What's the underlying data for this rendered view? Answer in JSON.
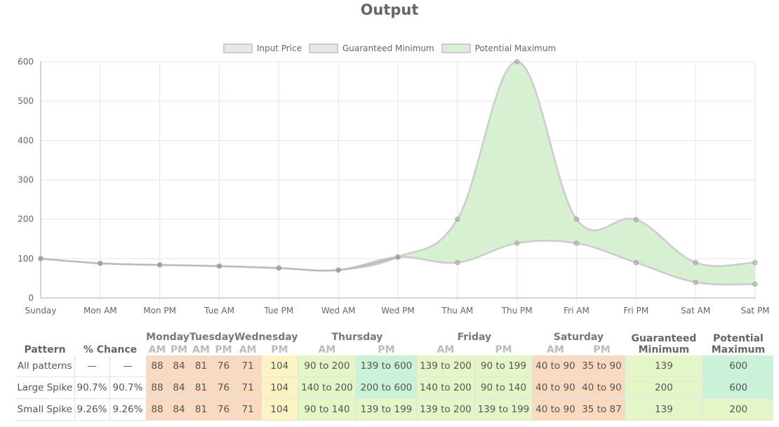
{
  "page_title": "Output",
  "colors": {
    "input_price_fill": "#e8e8e8",
    "guaranteed_min_fill": "#e8e8e8",
    "potential_max_fill": "#d8f0d2",
    "line_color": "#cccccc",
    "point_color": "#999999",
    "grid": "#e6e6e6",
    "cell_orange": "#f9d9bf",
    "cell_yellow": "#fbf4c2",
    "cell_lime": "#e4f6c8",
    "cell_mint": "#c9f2d8"
  },
  "chart_data": {
    "type": "area",
    "title": "",
    "xlabel": "",
    "ylabel": "",
    "ylim": [
      0,
      600
    ],
    "yticks": [
      "0",
      "100",
      "200",
      "300",
      "400",
      "500",
      "600"
    ],
    "grid": true,
    "legend_position": "top-center",
    "categories": [
      "Sunday",
      "Mon AM",
      "Mon PM",
      "Tue AM",
      "Tue PM",
      "Wed AM",
      "Wed PM",
      "Thu AM",
      "Thu PM",
      "Fri AM",
      "Fri PM",
      "Sat AM",
      "Sat PM"
    ],
    "series": [
      {
        "name": "Input Price",
        "values": [
          100,
          88,
          84,
          81,
          76,
          71,
          104,
          null,
          null,
          null,
          null,
          null,
          null
        ]
      },
      {
        "name": "Guaranteed Minimum",
        "values": [
          100,
          88,
          84,
          81,
          76,
          71,
          104,
          90,
          139,
          139,
          90,
          40,
          35
        ]
      },
      {
        "name": "Potential Maximum",
        "values": [
          100,
          88,
          84,
          81,
          76,
          71,
          104,
          200,
          600,
          200,
          199,
          90,
          90
        ]
      }
    ]
  },
  "table": {
    "headers": {
      "pattern": "Pattern",
      "chance": "% Chance",
      "days": [
        "Monday",
        "Tuesday",
        "Wednesday",
        "Thursday",
        "Friday",
        "Saturday"
      ],
      "am": "AM",
      "pm": "PM",
      "guaranteed_line1": "Guaranteed",
      "guaranteed_line2": "Minimum",
      "potential_line1": "Potential",
      "potential_line2": "Maximum"
    },
    "rows": [
      {
        "pattern": "All patterns",
        "chance1": "—",
        "chance2": "—",
        "cells": [
          "88",
          "84",
          "81",
          "76",
          "71",
          "104",
          "90 to 200",
          "139 to 600",
          "139 to 200",
          "90 to 199",
          "40 to 90",
          "35 to 90"
        ],
        "guaranteed": "139",
        "potential": "600"
      },
      {
        "pattern": "Large Spike",
        "chance1": "90.7%",
        "chance2": "90.7%",
        "cells": [
          "88",
          "84",
          "81",
          "76",
          "71",
          "104",
          "140 to 200",
          "200 to 600",
          "140 to 200",
          "90 to 140",
          "40 to 90",
          "40 to 90"
        ],
        "guaranteed": "200",
        "potential": "600"
      },
      {
        "pattern": "Small Spike",
        "chance1": "9.26%",
        "chance2": "9.26%",
        "cells": [
          "88",
          "84",
          "81",
          "76",
          "71",
          "104",
          "90 to 140",
          "139 to 199",
          "139 to 200",
          "139 to 199",
          "40 to 90",
          "35 to 87"
        ],
        "guaranteed": "139",
        "potential": "200"
      }
    ]
  }
}
